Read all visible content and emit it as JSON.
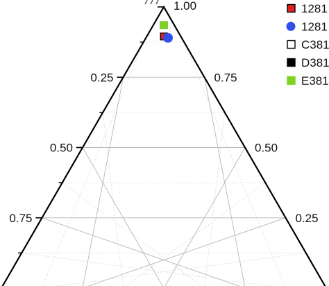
{
  "chart_data": {
    "type": "scatter",
    "subtype": "ternary",
    "grid": true,
    "legend_position": "top-right",
    "grid_color": "#bdbdbd",
    "minor_grid_color": "#d9d9d9",
    "axis_color": "#000000",
    "tick_labels_left": [
      "0.25",
      "0.50",
      "0.75"
    ],
    "tick_labels_right": [
      "1.00",
      "0.75",
      "0.50",
      "0.25"
    ],
    "legend": [
      {
        "label": "1281",
        "marker": "square",
        "color": "#e02020",
        "edge": "#000000"
      },
      {
        "label": "1281",
        "marker": "circle",
        "color": "#2f4fe8",
        "edge": "#2f4fe8"
      },
      {
        "label": "C381",
        "marker": "square",
        "color": "#ffffff",
        "edge": "#000000"
      },
      {
        "label": "D381",
        "marker": "square",
        "color": "#000000",
        "edge": "#000000"
      },
      {
        "label": "E381",
        "marker": "square",
        "color": "#7ed321",
        "edge": "#7ed321"
      }
    ],
    "points": [
      {
        "series": "C381",
        "marker": "square",
        "color": "#ffffff",
        "edge": "#000000",
        "right_axis": 0.935,
        "left_axis": 0.0
      },
      {
        "series": "E381",
        "marker": "square",
        "color": "#7ed321",
        "edge": "#7ed321",
        "right_axis": 0.935,
        "left_axis": 0.0
      },
      {
        "series": "1281",
        "marker": "square",
        "color": "#e02020",
        "edge": "#000000",
        "right_axis": 0.895,
        "left_axis": 0.01
      },
      {
        "series": "1281",
        "marker": "circle",
        "color": "#2f4fe8",
        "edge": "#2f4fe8",
        "right_axis": 0.89,
        "left_axis": 0.0
      }
    ]
  }
}
